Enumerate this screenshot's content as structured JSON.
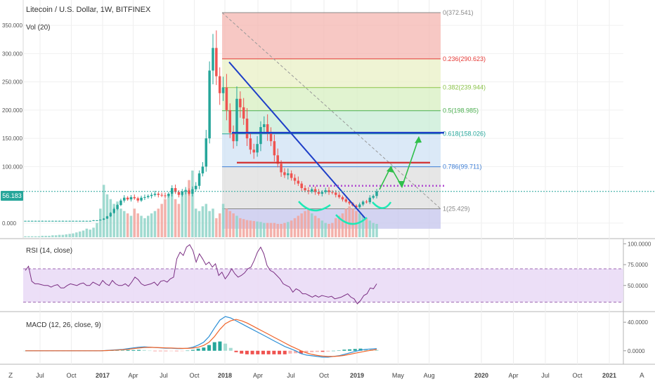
{
  "header": {
    "title": "Litecoin / U.S. Dollar, 1W, BITFINEX"
  },
  "current_price": "56.183",
  "corner": {
    "left": "Z",
    "right": "A"
  },
  "chart_data": [
    {
      "type": "candlestick",
      "panel": "price",
      "title": "Litecoin / U.S. Dollar, 1W, BITFINEX",
      "y_ticks": [
        "350.000",
        "300.000",
        "250.000",
        "200.000",
        "150.000",
        "100.000",
        "0.000"
      ],
      "ylim": [
        -15,
        375
      ],
      "last_price": 56.183,
      "fibonacci": [
        {
          "level": "0",
          "price": "372.541",
          "value": 372.541,
          "color": "#888888"
        },
        {
          "level": "0.236",
          "price": "290.623",
          "value": 290.623,
          "color": "#e53935"
        },
        {
          "level": "0.382",
          "price": "239.944",
          "value": 239.944,
          "color": "#8bc34a"
        },
        {
          "level": "0.5",
          "price": "198.985",
          "value": 198.985,
          "color": "#4caf50"
        },
        {
          "level": "0.618",
          "price": "158.026",
          "value": 158.026,
          "color": "#26a69a"
        },
        {
          "level": "0.786",
          "price": "99.711",
          "value": 99.711,
          "color": "#3f7fd6"
        },
        {
          "level": "1",
          "price": "25.429",
          "value": 25.429,
          "color": "#888888"
        }
      ],
      "closes": [
        4,
        4,
        4,
        4,
        4,
        4,
        4,
        4,
        4,
        4,
        4,
        4,
        4,
        4,
        4,
        4,
        4,
        4,
        4,
        4,
        5,
        5,
        6,
        8,
        12,
        18,
        25,
        32,
        40,
        45,
        42,
        46,
        44,
        40,
        45,
        46,
        48,
        50,
        52,
        50,
        49,
        48,
        52,
        62,
        55,
        50,
        56,
        58,
        52,
        60,
        66,
        88,
        100,
        150,
        270,
        310,
        260,
        230,
        240,
        200,
        160,
        145,
        220,
        205,
        185,
        150,
        130,
        125,
        140,
        170,
        175,
        160,
        145,
        120,
        105,
        90,
        85,
        88,
        80,
        75,
        70,
        62,
        58,
        56,
        60,
        55,
        52,
        55,
        58,
        55,
        54,
        50,
        46,
        42,
        38,
        35,
        31,
        28,
        33,
        38,
        37,
        45,
        48,
        56
      ],
      "volume": [
        2,
        2,
        2,
        2,
        2,
        3,
        3,
        3,
        4,
        4,
        5,
        5,
        6,
        7,
        8,
        10,
        12,
        14,
        18,
        16,
        20,
        30,
        60,
        110,
        90,
        80,
        70,
        75,
        60,
        55,
        50,
        45,
        60,
        50,
        45,
        40,
        45,
        50,
        55,
        60,
        70,
        80,
        90,
        100,
        80,
        70,
        90,
        100,
        120,
        140,
        60,
        55,
        65,
        70,
        55,
        60,
        40,
        50,
        70,
        60,
        55,
        50,
        45,
        40,
        38,
        36,
        35,
        34,
        33,
        32,
        30,
        30,
        30,
        30,
        28,
        28,
        30,
        32,
        35,
        40,
        45,
        50,
        55,
        60,
        50,
        45,
        40,
        35,
        30,
        28,
        30,
        40,
        45,
        50,
        60,
        65,
        60,
        55,
        50,
        45,
        40,
        35,
        30,
        28
      ],
      "annotations": {
        "blue_trendline": {
          "from": [
            "2018-01",
            285
          ],
          "to": [
            "2018-12",
            8
          ]
        },
        "blue_horizontal": 160,
        "red_horizontal": 107,
        "purple_dotted": 66,
        "green_forecast": [
          [
            56,
            "2019-03"
          ],
          [
            100,
            "2019-03"
          ],
          [
            75,
            "2019-04"
          ],
          [
            158,
            "2019-05"
          ]
        ]
      }
    },
    {
      "type": "line",
      "panel": "rsi",
      "title": "RSI (14, close)",
      "y_ticks": [
        "100.0000",
        "75.0000",
        "50.0000"
      ],
      "ylim": [
        22,
        102
      ],
      "bands": [
        70,
        30
      ],
      "values": [
        68,
        73,
        55,
        52,
        52,
        51,
        50,
        50,
        48,
        50,
        51,
        47,
        47,
        50,
        52,
        51,
        50,
        52,
        53,
        50,
        50,
        54,
        52,
        50,
        56,
        52,
        50,
        56,
        52,
        50,
        50,
        52,
        49,
        54,
        60,
        57,
        52,
        50,
        51,
        52,
        54,
        50,
        55,
        56,
        54,
        58,
        60,
        82,
        90,
        86,
        96,
        99,
        92,
        78,
        88,
        82,
        75,
        78,
        72,
        76,
        62,
        66,
        58,
        63,
        70,
        64,
        60,
        62,
        65,
        70,
        72,
        80,
        90,
        96,
        88,
        74,
        68,
        66,
        62,
        58,
        52,
        50,
        48,
        42,
        46,
        44,
        40,
        40,
        38,
        36,
        38,
        36,
        38,
        37,
        36,
        37,
        34,
        35,
        36,
        38,
        40,
        36,
        34,
        28,
        32,
        38,
        40,
        47,
        46,
        52
      ]
    },
    {
      "type": "line+bar",
      "panel": "macd",
      "title": "MACD (12, 26, close, 9)",
      "y_ticks": [
        "40.0000",
        "0.0000"
      ],
      "ylim": [
        -14,
        50
      ],
      "series": [
        {
          "values": [
            0,
            0,
            0,
            0,
            0,
            0,
            0,
            0,
            0,
            0,
            0,
            0,
            0,
            0,
            0,
            0.5,
            1,
            1.5,
            2,
            3,
            4,
            5,
            5.5,
            5,
            4.5,
            4,
            3.5,
            3.5,
            3,
            3,
            3.5,
            5,
            8,
            12,
            20,
            32,
            43,
            48,
            46,
            42,
            38,
            34,
            30,
            26,
            22,
            18,
            14,
            10,
            6,
            3,
            0,
            -4,
            -6,
            -7,
            -8,
            -9,
            -9,
            -8,
            -7,
            -5,
            -3,
            -1,
            1,
            2,
            2.5,
            3
          ]
        },
        {
          "values": [
            0,
            0,
            0,
            0,
            0,
            0,
            0,
            0,
            0,
            0,
            0,
            0,
            0,
            0,
            0,
            0.3,
            0.6,
            1,
            1.5,
            2,
            3,
            3.8,
            4.5,
            4.8,
            4.6,
            4.3,
            4,
            3.8,
            3.5,
            3.3,
            3.3,
            3.8,
            5,
            7.5,
            12,
            20,
            30,
            38,
            42,
            44,
            42,
            39,
            35,
            31,
            27,
            23,
            19,
            15,
            11,
            7,
            3.5,
            0,
            -3,
            -5,
            -6.5,
            -7.5,
            -8,
            -8,
            -7.5,
            -6.5,
            -5,
            -3.5,
            -2,
            -0.5,
            0.8,
            1.8
          ]
        }
      ],
      "histogram": [
        0,
        0,
        0,
        0,
        0,
        0,
        0,
        0,
        0,
        0,
        0,
        0,
        0,
        0,
        0,
        0.2,
        0.4,
        0.5,
        0.5,
        1,
        1,
        1.2,
        1,
        0.2,
        -0.1,
        -0.3,
        -0.5,
        -0.3,
        -0.5,
        -0.3,
        0.2,
        1.2,
        3,
        4.5,
        8,
        12,
        13,
        10,
        4,
        -2,
        -4,
        -5,
        -5,
        -5,
        -5,
        -5,
        -5,
        -5,
        -5,
        -4,
        -3.5,
        -4,
        -3,
        -2,
        -1.5,
        -1.5,
        -1,
        0,
        0.5,
        1.5,
        2,
        2.5,
        3,
        2.5,
        1.7,
        1.2
      ]
    }
  ],
  "x_axis": {
    "labels": [
      {
        "text": "Jul",
        "t": 2016.5
      },
      {
        "text": "Oct",
        "t": 2016.75
      },
      {
        "text": "2017",
        "t": 2017.0,
        "bold": true
      },
      {
        "text": "Apr",
        "t": 2017.25
      },
      {
        "text": "Jul",
        "t": 2017.5
      },
      {
        "text": "Oct",
        "t": 2017.75
      },
      {
        "text": "2018",
        "t": 2018.0,
        "bold": true
      },
      {
        "text": "Apr",
        "t": 2018.25
      },
      {
        "text": "Jul",
        "t": 2018.5
      },
      {
        "text": "Oct",
        "t": 2018.75
      },
      {
        "text": "2019",
        "t": 2019.0,
        "bold": true
      },
      {
        "text": "May",
        "t": 2019.33
      },
      {
        "text": "Aug",
        "t": 2019.58
      },
      {
        "text": "2020",
        "t": 2020.0,
        "bold": true
      },
      {
        "text": "Apr",
        "t": 2020.25
      },
      {
        "text": "Jul",
        "t": 2020.5
      },
      {
        "text": "Oct",
        "t": 2020.75
      },
      {
        "text": "2021",
        "t": 2021.0,
        "bold": true
      }
    ]
  },
  "labels": {
    "vol": "Vol (20)",
    "rsi": "RSI (14, close)",
    "macd": "MACD (12, 26, close, 9)"
  }
}
